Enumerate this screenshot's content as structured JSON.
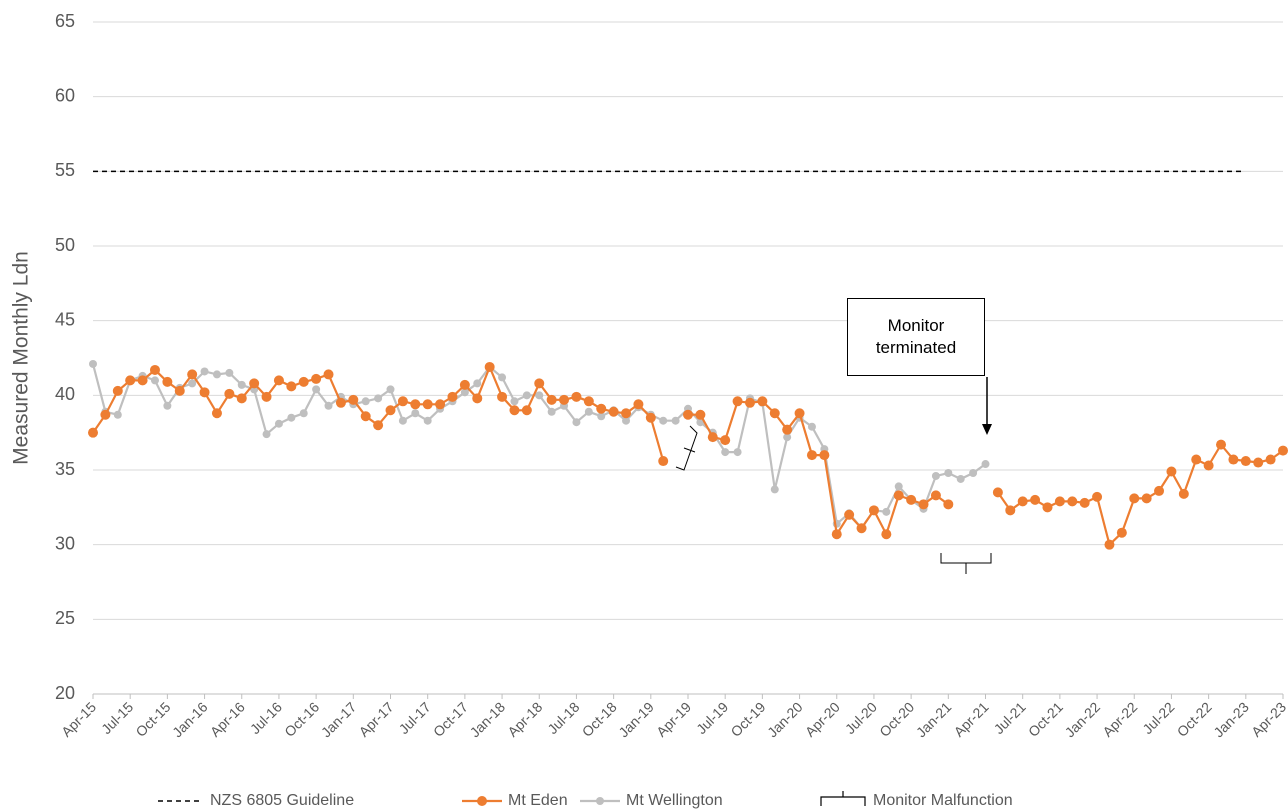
{
  "chart_data": {
    "type": "line",
    "y_label": "Measured Monthly Ldn",
    "categories": [
      "Apr-15",
      null,
      null,
      "Jul-15",
      null,
      null,
      "Oct-15",
      null,
      null,
      "Jan-16",
      null,
      null,
      "Apr-16",
      null,
      null,
      "Jul-16",
      null,
      null,
      "Oct-16",
      null,
      null,
      "Jan-17",
      null,
      null,
      "Apr-17",
      null,
      null,
      "Jul-17",
      null,
      null,
      "Oct-17",
      null,
      null,
      "Jan-18",
      null,
      null,
      "Apr-18",
      null,
      null,
      "Jul-18",
      null,
      null,
      "Oct-18",
      null,
      null,
      "Jan-19",
      null,
      null,
      "Apr-19",
      null,
      null,
      "Jul-19",
      null,
      null,
      "Oct-19",
      null,
      null,
      "Jan-20",
      null,
      null,
      "Apr-20",
      null,
      null,
      "Jul-20",
      null,
      null,
      "Oct-20",
      null,
      null,
      "Jan-21",
      null,
      null,
      "Apr-21",
      null,
      null,
      "Jul-21",
      null,
      null,
      "Oct-21",
      null,
      null,
      "Jan-22",
      null,
      null,
      "Apr-22",
      null,
      null,
      "Jul-22",
      null,
      null,
      "Oct-22",
      null,
      null,
      "Jan-23",
      null,
      null,
      "Apr-23"
    ],
    "series": [
      {
        "name": "Mt Wellington",
        "color": "#bfbfbf",
        "values": [
          42.1,
          38.9,
          38.7,
          41.0,
          41.3,
          41.0,
          39.3,
          40.5,
          40.8,
          41.6,
          41.4,
          41.5,
          40.7,
          40.4,
          37.4,
          38.1,
          38.5,
          38.8,
          40.4,
          39.3,
          39.9,
          39.4,
          39.6,
          39.8,
          40.4,
          38.3,
          38.8,
          38.3,
          39.1,
          39.6,
          40.2,
          40.8,
          41.9,
          41.2,
          39.6,
          40.0,
          40.0,
          38.9,
          39.3,
          38.2,
          38.9,
          38.6,
          39.0,
          38.3,
          39.2,
          38.7,
          38.3,
          38.3,
          39.1,
          38.2,
          37.5,
          36.2,
          36.2,
          39.8,
          39.5,
          33.7,
          37.2,
          38.5,
          37.9,
          36.4,
          31.4,
          32.1,
          31.1,
          32.3,
          32.2,
          33.9,
          33.0,
          32.4,
          34.6,
          34.8,
          34.4,
          34.8,
          35.4,
          null,
          null,
          null,
          null,
          null,
          null,
          null,
          null,
          null,
          null,
          null,
          null,
          null,
          null,
          null,
          null,
          null,
          null,
          null,
          null,
          null,
          null,
          null,
          null
        ]
      },
      {
        "name": "Mt Eden",
        "color": "#ed7d31",
        "values": [
          37.5,
          38.7,
          40.3,
          41.0,
          41.0,
          41.7,
          40.9,
          40.3,
          41.4,
          40.2,
          38.8,
          40.1,
          39.8,
          40.8,
          39.9,
          41.0,
          40.6,
          40.9,
          41.1,
          41.4,
          39.5,
          39.7,
          38.6,
          38.0,
          39.0,
          39.6,
          39.4,
          39.4,
          39.4,
          39.9,
          40.7,
          39.8,
          41.9,
          39.9,
          39.0,
          39.0,
          40.8,
          39.7,
          39.7,
          39.9,
          39.6,
          39.1,
          38.9,
          38.8,
          39.4,
          38.5,
          35.6,
          null,
          38.7,
          38.7,
          37.2,
          37.0,
          39.6,
          39.5,
          39.6,
          38.8,
          37.7,
          38.8,
          36.0,
          36.0,
          30.7,
          32.0,
          31.1,
          32.3,
          30.7,
          33.3,
          33.0,
          32.7,
          33.3,
          32.7,
          null,
          null,
          null,
          33.5,
          32.3,
          32.9,
          33.0,
          32.5,
          32.9,
          32.9,
          32.8,
          33.2,
          30.0,
          30.8,
          33.1,
          33.1,
          33.6,
          34.9,
          33.4,
          35.7,
          35.3,
          36.7,
          35.7,
          35.6,
          35.5,
          35.7,
          36.3
        ]
      }
    ],
    "guideline": {
      "name": "NZS 6805 Guideline",
      "value": 55,
      "color": "#000000"
    },
    "malfunction_legend": "Monitor Malfunction",
    "annotation": "Monitor terminated",
    "ylim": [
      20,
      65
    ],
    "yticks": [
      20,
      25,
      30,
      35,
      40,
      45,
      50,
      55,
      60,
      65
    ],
    "grid": true
  }
}
